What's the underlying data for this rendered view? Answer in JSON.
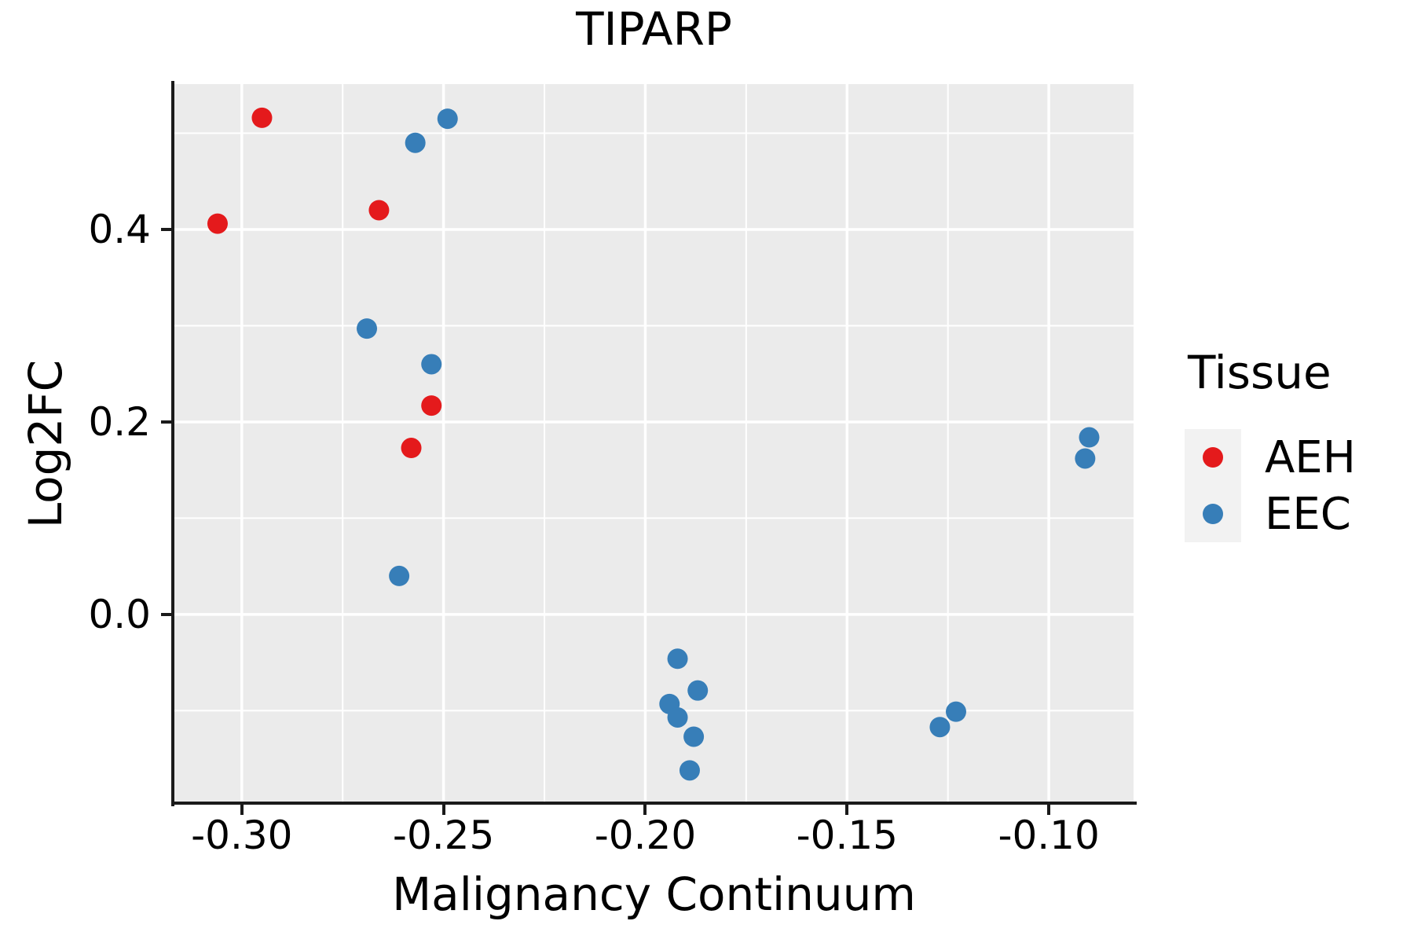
{
  "chart_data": {
    "type": "scatter",
    "title": "TIPARP",
    "xlabel": "Malignancy Continuum",
    "ylabel": "Log2FC",
    "xlim": [
      -0.3167,
      -0.079
    ],
    "ylim": [
      -0.196,
      0.551
    ],
    "grid": true,
    "x_ticks": {
      "values": [
        -0.3,
        -0.25,
        -0.2,
        -0.15,
        -0.1
      ],
      "labels": [
        "-0.30",
        "-0.25",
        "-0.20",
        "-0.15",
        "-0.10"
      ]
    },
    "x_minor_ticks": [
      -0.275,
      -0.225,
      -0.175,
      -0.125
    ],
    "y_ticks": {
      "values": [
        0.0,
        0.2,
        0.4
      ],
      "labels": [
        "0.0",
        "0.2",
        "0.4"
      ]
    },
    "y_minor_ticks": [
      -0.1,
      0.1,
      0.3,
      0.5
    ],
    "legend": {
      "title": "Tissue",
      "position": "right",
      "items": [
        {
          "label": "AEH",
          "color": "#e41a1c"
        },
        {
          "label": "EEC",
          "color": "#377eb8"
        }
      ]
    },
    "series": [
      {
        "name": "AEH",
        "color": "#e41a1c",
        "points": [
          [
            -0.295,
            0.516
          ],
          [
            -0.306,
            0.406
          ],
          [
            -0.266,
            0.42
          ],
          [
            -0.253,
            0.217
          ],
          [
            -0.258,
            0.173
          ]
        ]
      },
      {
        "name": "EEC",
        "color": "#377eb8",
        "points": [
          [
            -0.249,
            0.515
          ],
          [
            -0.257,
            0.49
          ],
          [
            -0.269,
            0.297
          ],
          [
            -0.253,
            0.26
          ],
          [
            -0.261,
            0.04
          ],
          [
            -0.192,
            -0.046
          ],
          [
            -0.187,
            -0.079
          ],
          [
            -0.194,
            -0.093
          ],
          [
            -0.192,
            -0.107
          ],
          [
            -0.188,
            -0.127
          ],
          [
            -0.189,
            -0.162
          ],
          [
            -0.123,
            -0.101
          ],
          [
            -0.127,
            -0.117
          ],
          [
            -0.09,
            0.184
          ],
          [
            -0.091,
            0.162
          ]
        ]
      }
    ],
    "marker_radius_px": 13,
    "colors": {
      "panel_bg": "#ebebeb",
      "grid": "#ffffff",
      "axis": "#1a1a1a",
      "legend_key_bg": "#f2f2f2",
      "text": "#000000"
    }
  }
}
